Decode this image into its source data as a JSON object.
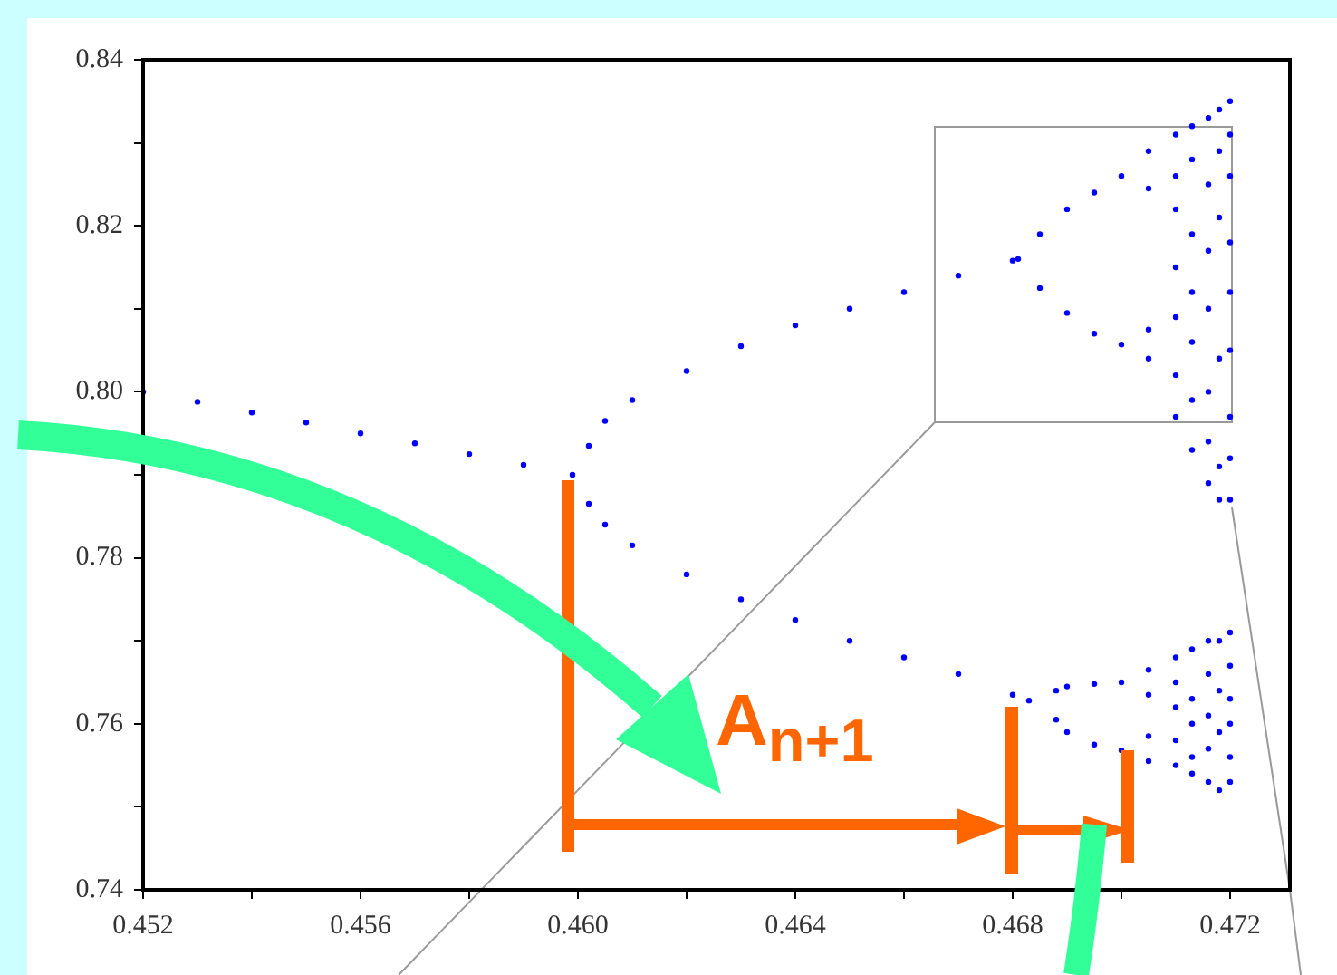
{
  "chart_data": {
    "type": "scatter",
    "xlim": [
      0.452,
      0.4731
    ],
    "xticks": [
      0.452,
      {
        "value": 0.454,
        "label": null
      },
      0.456,
      {
        "value": 0.458,
        "label": null
      },
      {
        "value": 0.46,
        "label": "0.460"
      },
      {
        "value": 0.462,
        "label": null
      },
      0.464,
      {
        "value": 0.466,
        "label": null
      },
      0.468,
      {
        "value": 0.47,
        "label": null
      },
      0.472
    ],
    "ylim": [
      0.74,
      0.84
    ],
    "yticks": [
      0.74,
      {
        "value": 0.75,
        "label": null
      },
      0.76,
      {
        "value": 0.77,
        "label": null
      },
      0.78,
      {
        "value": 0.79,
        "label": null
      },
      {
        "value": 0.8,
        "label": "0.80"
      },
      {
        "value": 0.81,
        "label": null
      },
      0.82,
      {
        "value": 0.83,
        "label": null
      },
      0.84
    ],
    "grid": false,
    "legend": false,
    "marker": "circle",
    "annotations": [
      "A$_{n+1}$"
    ],
    "series": [
      {
        "type": "scatter",
        "color": "#0000ff",
        "x": [
          0.452,
          0.453,
          0.454,
          0.455,
          0.456,
          0.457,
          0.458,
          0.459,
          0.4599,
          0.4602,
          0.4605,
          0.461,
          0.462,
          0.463,
          0.464,
          0.465,
          0.466,
          0.467,
          0.468,
          0.4681,
          0.4685,
          0.469,
          0.4695,
          0.47,
          0.4685,
          0.469,
          0.4695,
          0.47,
          0.4602,
          0.4605,
          0.461,
          0.462,
          0.463,
          0.464,
          0.465,
          0.466,
          0.467,
          0.468,
          0.4683,
          0.4688,
          0.469,
          0.4695,
          0.47,
          0.4688,
          0.469,
          0.4695,
          0.47,
          0.4705,
          0.4705,
          0.4705,
          0.4705,
          0.4705,
          0.4705,
          0.4705,
          0.4705,
          0.471,
          0.471,
          0.471,
          0.471,
          0.471,
          0.471,
          0.471,
          0.471,
          0.471,
          0.471,
          0.471,
          0.471,
          0.4713,
          0.4713,
          0.4713,
          0.4713,
          0.4713,
          0.4713,
          0.4713,
          0.4713,
          0.4713,
          0.4713,
          0.4713,
          0.4713,
          0.4716,
          0.4716,
          0.4716,
          0.4716,
          0.4716,
          0.4716,
          0.4716,
          0.4716,
          0.4716,
          0.4716,
          0.4716,
          0.4716,
          0.4718,
          0.4718,
          0.4718,
          0.4718,
          0.4718,
          0.4718,
          0.4718,
          0.4718,
          0.4718,
          0.4718,
          0.472,
          0.472,
          0.472,
          0.472,
          0.472,
          0.472,
          0.472,
          0.472,
          0.472,
          0.472,
          0.472,
          0.472,
          0.472,
          0.472,
          0.472
        ],
        "values": [
          0.8,
          0.7988,
          0.7975,
          0.7963,
          0.795,
          0.7938,
          0.7925,
          0.7912,
          0.79,
          0.7935,
          0.7965,
          0.799,
          0.8025,
          0.8055,
          0.808,
          0.81,
          0.812,
          0.814,
          0.8158,
          0.816,
          0.819,
          0.822,
          0.824,
          0.826,
          0.8125,
          0.8095,
          0.807,
          0.8057,
          0.7865,
          0.784,
          0.7815,
          0.778,
          0.775,
          0.7725,
          0.77,
          0.768,
          0.766,
          0.7635,
          0.7628,
          0.764,
          0.7645,
          0.7648,
          0.765,
          0.7605,
          0.759,
          0.7575,
          0.7568,
          0.829,
          0.8245,
          0.8075,
          0.804,
          0.7665,
          0.7635,
          0.7585,
          0.7555,
          0.831,
          0.826,
          0.822,
          0.815,
          0.809,
          0.802,
          0.797,
          0.768,
          0.765,
          0.762,
          0.758,
          0.755,
          0.832,
          0.828,
          0.819,
          0.812,
          0.806,
          0.799,
          0.793,
          0.769,
          0.763,
          0.76,
          0.756,
          0.754,
          0.833,
          0.825,
          0.817,
          0.81,
          0.8,
          0.794,
          0.789,
          0.77,
          0.766,
          0.761,
          0.757,
          0.753,
          0.834,
          0.829,
          0.821,
          0.804,
          0.791,
          0.787,
          0.77,
          0.764,
          0.759,
          0.752,
          0.835,
          0.831,
          0.826,
          0.818,
          0.812,
          0.805,
          0.797,
          0.792,
          0.787,
          0.771,
          0.767,
          0.763,
          0.76,
          0.756,
          0.753
        ]
      }
    ]
  }
}
